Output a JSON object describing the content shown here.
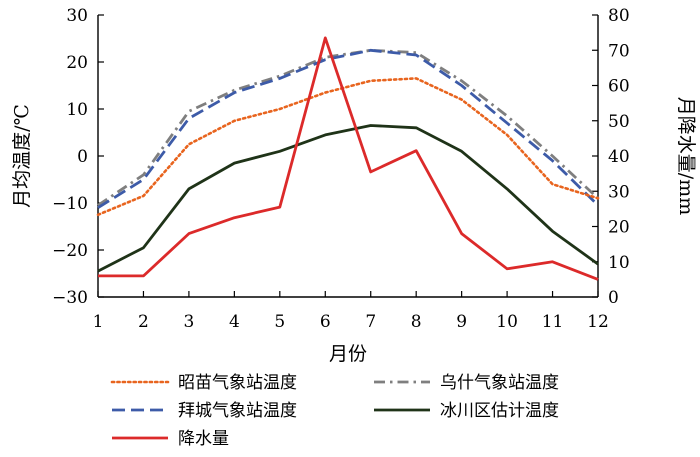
{
  "chart_data": {
    "type": "line",
    "x": [
      1,
      2,
      3,
      4,
      5,
      6,
      7,
      8,
      9,
      10,
      11,
      12
    ],
    "xlabel": "月份",
    "ylabel_left": "月均温度/℃",
    "ylabel_right": "月降水量/mm",
    "ylim_left": [
      -30,
      30
    ],
    "ylim_right": [
      0,
      80
    ],
    "yticks_left": [
      -30,
      -20,
      -10,
      0,
      10,
      20,
      30
    ],
    "yticks_right": [
      0,
      10,
      20,
      30,
      40,
      50,
      60,
      70,
      80
    ],
    "xticks": [
      1,
      2,
      3,
      4,
      5,
      6,
      7,
      8,
      9,
      10,
      11,
      12
    ],
    "grid": false,
    "legend_position": "bottom",
    "series": [
      {
        "name": "昭苗气象站温度",
        "axis": "left",
        "color": "#e8641e",
        "dash": "dotted",
        "values": [
          -12.5,
          -8.5,
          2.5,
          7.5,
          10,
          13.5,
          16,
          16.5,
          12,
          4.5,
          -6,
          -9
        ]
      },
      {
        "name": "乌什气象站温度",
        "axis": "left",
        "color": "#7f7f7f",
        "dash": "dashdot",
        "values": [
          -10.5,
          -4,
          9.5,
          14,
          17,
          21,
          22.5,
          22,
          16,
          8.5,
          0,
          -9
        ]
      },
      {
        "name": "拜城气象站温度",
        "axis": "left",
        "color": "#3d5ba8",
        "dash": "dashed",
        "values": [
          -11,
          -5,
          8,
          13.5,
          16.5,
          20.5,
          22.5,
          21.5,
          15,
          7,
          -1,
          -10.5
        ]
      },
      {
        "name": "冰川区估计温度",
        "axis": "left",
        "color": "#1f3318",
        "dash": "solid",
        "values": [
          -24.5,
          -19.5,
          -7,
          -1.5,
          1,
          4.5,
          6.5,
          6,
          1,
          -7,
          -16,
          -23
        ]
      },
      {
        "name": "降水量",
        "axis": "right",
        "color": "#dc2a2a",
        "dash": "solid",
        "values": [
          6,
          6,
          18,
          22.5,
          25.5,
          73.5,
          35.5,
          41.5,
          18,
          8,
          10,
          5
        ]
      }
    ]
  }
}
